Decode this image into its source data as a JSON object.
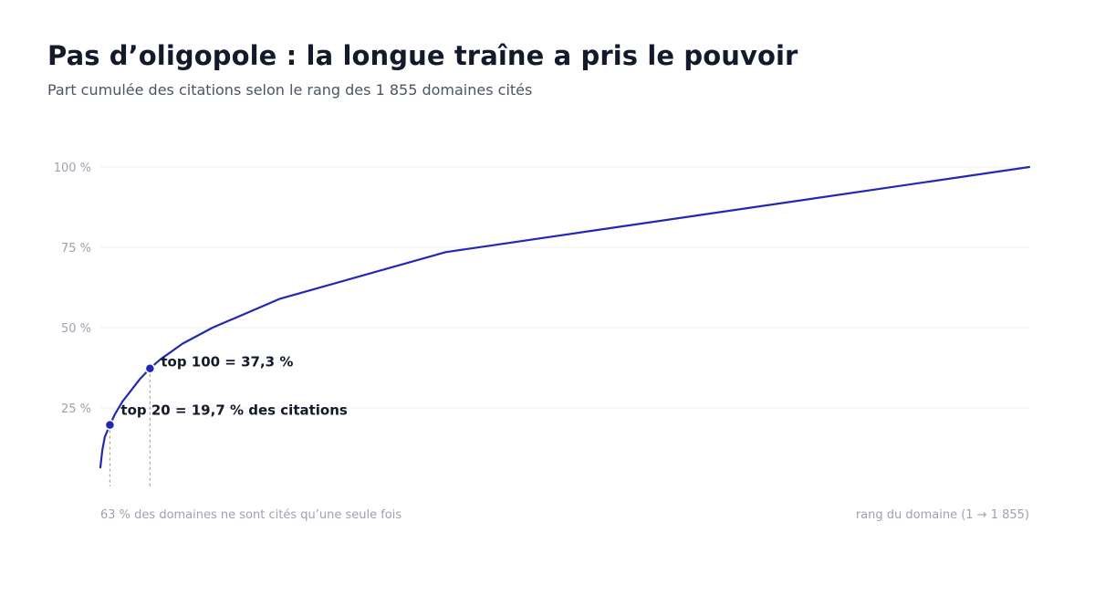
{
  "header": {
    "title": "Pas d’oligopole : la longue traîne a pris le pouvoir",
    "subtitle": "Part cumulée des citations selon le rang des 1 855 domaines cités"
  },
  "colors": {
    "line": "#2328b4",
    "grid": "#ececec",
    "tick_text": "#9ca3af",
    "annotation_text": "#121a2b",
    "guide": "#a8a8a8"
  },
  "chart_data": {
    "type": "line",
    "title": "Pas d’oligopole : la longue traîne a pris le pouvoir",
    "subtitle": "Part cumulée des citations selon le rang des 1 855 domaines cités",
    "xlabel": "rang du domaine (1 → 1 855)",
    "ylabel": "",
    "xlim": [
      1,
      1855
    ],
    "ylim": [
      0,
      100
    ],
    "y_ticks": [
      25,
      50,
      75,
      100
    ],
    "y_tick_labels": [
      "25 %",
      "50 %",
      "75 %",
      "100 %"
    ],
    "grid": true,
    "series": [
      {
        "x": [
          1,
          5,
          10,
          20,
          30,
          45,
          60,
          80,
          100,
          120,
          165,
          225,
          360,
          690,
          1855
        ],
        "y": [
          6.5,
          12,
          16,
          19.7,
          23,
          27,
          30,
          34,
          37.3,
          40,
          45,
          50,
          59,
          73.5,
          100
        ]
      }
    ],
    "annotations": [
      {
        "x": 20,
        "y": 19.7,
        "text": "top 20 = 19,7 % des citations"
      },
      {
        "x": 100,
        "y": 37.3,
        "text": "top 100 = 37,3 %"
      }
    ],
    "footnote": "63 % des domaines ne sont cités qu’une seule fois"
  }
}
